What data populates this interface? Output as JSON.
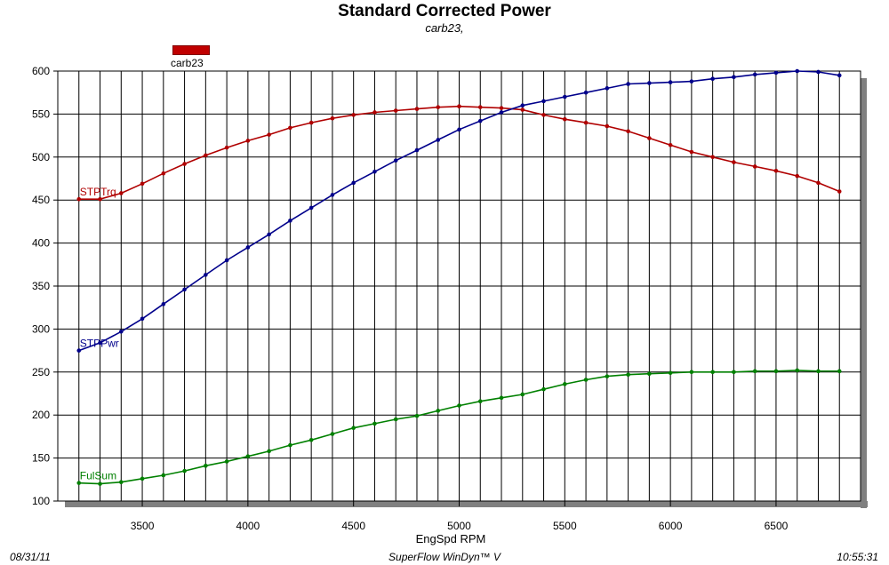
{
  "chart_data": {
    "type": "line",
    "title": "Standard Corrected Power",
    "subtitle": "carb23,",
    "legend": [
      {
        "label": "carb23",
        "color": "#c00000"
      }
    ],
    "xlabel": "EngSpd RPM",
    "ylabel": "",
    "xlim": [
      3100,
      6900
    ],
    "ylim": [
      100,
      600
    ],
    "xticks": [
      3500,
      4000,
      4500,
      5000,
      5500,
      6000,
      6500
    ],
    "yticks": [
      100,
      150,
      200,
      250,
      300,
      350,
      400,
      450,
      500,
      550,
      600
    ],
    "x": [
      3200,
      3300,
      3400,
      3500,
      3600,
      3700,
      3800,
      3900,
      4000,
      4100,
      4200,
      4300,
      4400,
      4500,
      4600,
      4700,
      4800,
      4900,
      5000,
      5100,
      5200,
      5300,
      5400,
      5500,
      5600,
      5700,
      5800,
      5900,
      6000,
      6100,
      6200,
      6300,
      6400,
      6500,
      6600,
      6700,
      6800
    ],
    "grid": true,
    "series": [
      {
        "name": "STPTrq",
        "color": "#b00000",
        "values": [
          451,
          451,
          458,
          469,
          481,
          492,
          502,
          511,
          519,
          526,
          534,
          540,
          545,
          549,
          552,
          554,
          556,
          558,
          559,
          558,
          557,
          555,
          549,
          544,
          540,
          536,
          530,
          522,
          514,
          506,
          500,
          494,
          489,
          484,
          478,
          470,
          460
        ]
      },
      {
        "name": "STPPwr",
        "color": "#00008b",
        "values": [
          275,
          284,
          297,
          312,
          329,
          346,
          363,
          380,
          395,
          410,
          426,
          441,
          456,
          470,
          483,
          496,
          508,
          520,
          532,
          542,
          552,
          560,
          565,
          570,
          575,
          580,
          585,
          586,
          587,
          588,
          591,
          593,
          596,
          598,
          600,
          599,
          595
        ]
      },
      {
        "name": "FulSum",
        "color": "#008000",
        "values": [
          121,
          120,
          122,
          126,
          130,
          135,
          141,
          146,
          152,
          158,
          165,
          171,
          178,
          185,
          190,
          195,
          199,
          205,
          211,
          216,
          220,
          224,
          230,
          236,
          241,
          245,
          247,
          248,
          249,
          250,
          250,
          250,
          251,
          251,
          252,
          251,
          251
        ]
      }
    ]
  },
  "footer": {
    "date": "08/31/11",
    "software": "SuperFlow WinDyn™ V",
    "time": "10:55:31"
  }
}
